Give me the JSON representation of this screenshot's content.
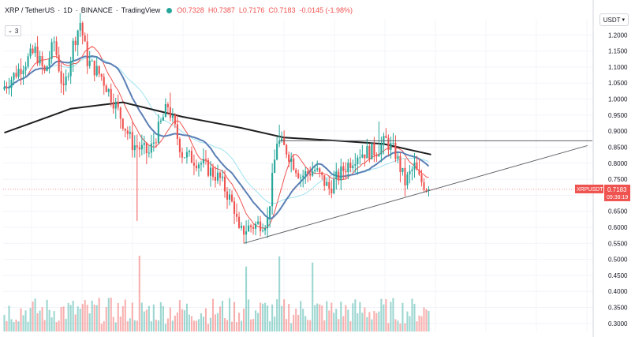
{
  "header": {
    "symbol": "XRP / TetherUS",
    "interval": "1D",
    "exchange": "BINANCE",
    "platform": "TradingView",
    "open": "O0.7328",
    "high": "H0.7387",
    "low": "L0.7176",
    "close": "C0.7183",
    "change": "-0.0145 (-1.98%)",
    "indicator_toggle": "3"
  },
  "currency_button": "USDT",
  "price_badge": {
    "symbol": "XRPUSDT",
    "price": "0.7183",
    "countdown": "09:38:19"
  },
  "colors": {
    "up": "#26a69a",
    "down": "#ef5350",
    "ma_fast": "#ef5350",
    "ma_mid": "#5b7fb5",
    "ma_cyan": "#9fe3f0",
    "ma_slow": "#1f1f1f",
    "trendline": "#5f6368"
  },
  "chart_data": {
    "type": "candlestick",
    "y_axis": {
      "side": "right",
      "min": 0.275,
      "max": 1.25,
      "ticks": [
        1.2,
        1.15,
        1.1,
        1.05,
        1.0,
        0.95,
        0.9,
        0.85,
        0.8,
        0.75,
        0.7,
        0.65,
        0.6,
        0.55,
        0.5,
        0.45,
        0.4,
        0.35,
        0.3
      ],
      "tick_labels": [
        "1.2000",
        "1.1500",
        "1.1000",
        "1.0500",
        "1.0000",
        "0.9500",
        "0.9000",
        "0.8500",
        "0.8000",
        "0.7500",
        "0.7000",
        "0.6500",
        "0.6000",
        "0.5500",
        "0.5000",
        "0.4500",
        "0.4000",
        "0.3500",
        "0.3000"
      ]
    },
    "bar_count": 180,
    "last_close": 0.7183,
    "keypoints": [
      [
        0,
        1.03
      ],
      [
        8,
        1.1
      ],
      [
        14,
        1.15
      ],
      [
        18,
        1.08
      ],
      [
        22,
        1.18
      ],
      [
        26,
        1.02
      ],
      [
        30,
        1.17
      ],
      [
        33,
        1.24
      ],
      [
        36,
        1.12
      ],
      [
        42,
        1.07
      ],
      [
        48,
        0.98
      ],
      [
        55,
        0.86
      ],
      [
        62,
        0.83
      ],
      [
        70,
        0.98
      ],
      [
        76,
        0.83
      ],
      [
        84,
        0.8
      ],
      [
        92,
        0.75
      ],
      [
        98,
        0.66
      ],
      [
        100,
        0.58
      ],
      [
        104,
        0.6
      ],
      [
        112,
        0.62
      ],
      [
        116,
        0.87
      ],
      [
        120,
        0.84
      ],
      [
        126,
        0.76
      ],
      [
        132,
        0.78
      ],
      [
        138,
        0.72
      ],
      [
        144,
        0.78
      ],
      [
        150,
        0.83
      ],
      [
        158,
        0.84
      ],
      [
        162,
        0.87
      ],
      [
        166,
        0.83
      ],
      [
        170,
        0.74
      ],
      [
        174,
        0.79
      ],
      [
        176,
        0.75
      ],
      [
        180,
        0.718
      ]
    ],
    "moving_averages": [
      {
        "period": 10,
        "color": "#ef5350"
      },
      {
        "period": 20,
        "color": "#5b7fb5"
      },
      {
        "period": 30,
        "color": "#9fe3f0"
      },
      {
        "period": 100,
        "color": "#1f1f1f"
      }
    ],
    "ma_slow_start_level": 0.895,
    "ma_slow_points": [
      [
        0,
        0.895
      ],
      [
        15,
        0.935
      ],
      [
        28,
        0.97
      ],
      [
        50,
        0.99
      ],
      [
        75,
        0.945
      ],
      [
        100,
        0.91
      ],
      [
        118,
        0.88
      ],
      [
        140,
        0.87
      ],
      [
        160,
        0.86
      ],
      [
        180,
        0.827
      ]
    ],
    "drawings": [
      {
        "type": "horizontal_resistance",
        "from_bar": 116,
        "to_bar": 248,
        "price": 0.87
      },
      {
        "type": "rising_support",
        "from_bar": 101,
        "from_price": 0.55,
        "to_bar": 246,
        "to_price": 0.855
      }
    ],
    "volume": {
      "axis": "overlay_bottom",
      "max_bar": 0.32,
      "spike_bars": [
        57,
        116,
        130,
        102
      ]
    }
  }
}
